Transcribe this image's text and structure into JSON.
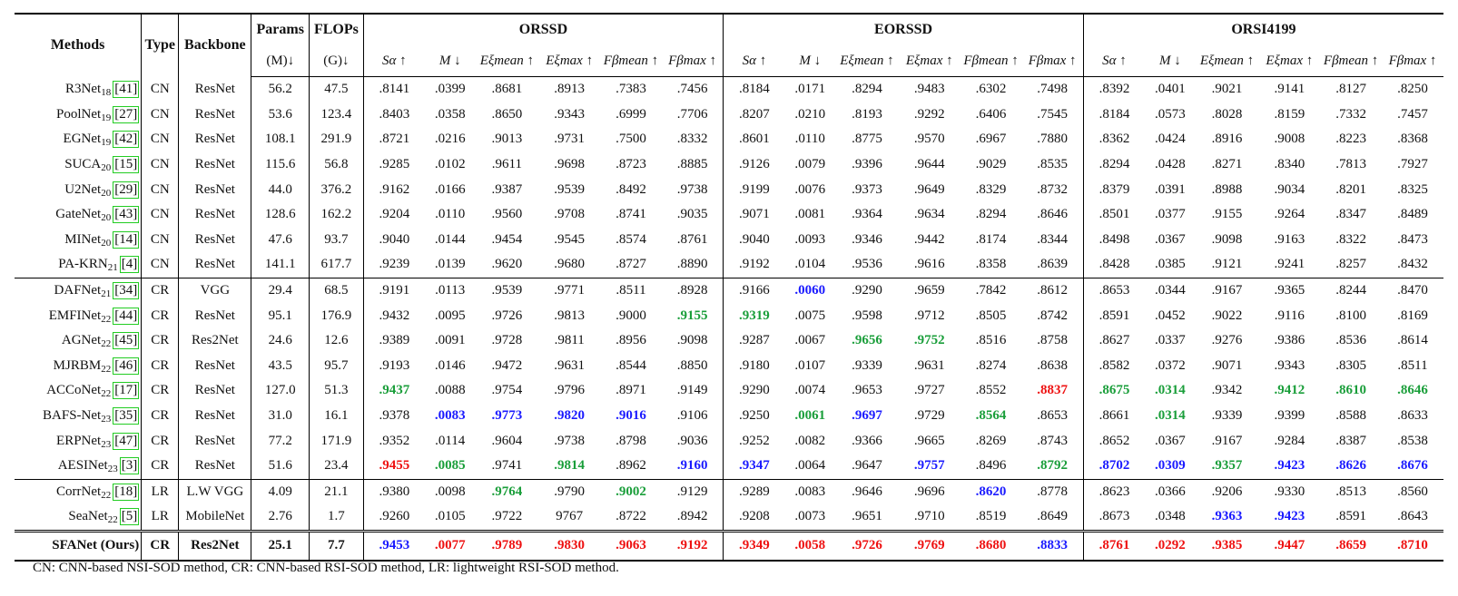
{
  "header": {
    "methods": "Methods",
    "type": "Type",
    "backbone": "Backbone",
    "params": "Params",
    "params_unit": "(M)↓",
    "flops": "FLOPs",
    "flops_unit": "(G)↓",
    "datasets": [
      "ORSSD",
      "EORSSD",
      "ORSI4199"
    ],
    "metrics": [
      "Sα ↑",
      "M ↓",
      "Eξmean ↑",
      "Eξmax ↑",
      "Fβmean ↑",
      "Fβmax ↑"
    ]
  },
  "colors": {
    "green": "#1a9e3a",
    "blue": "#1a1aff",
    "red": "#ee1111",
    "ref_box": "#22cc22"
  },
  "rows": [
    {
      "name": "R3Net",
      "year": "18",
      "ref": "41",
      "type": "CN",
      "backbone": "ResNet",
      "params": "56.2",
      "flops": "47.5",
      "vals": [
        ".8141",
        ".0399",
        ".8681",
        ".8913",
        ".7383",
        ".7456",
        ".8184",
        ".0171",
        ".8294",
        ".9483",
        ".6302",
        ".7498",
        ".8392",
        ".0401",
        ".9021",
        ".9141",
        ".8127",
        ".8250"
      ]
    },
    {
      "name": "PoolNet",
      "year": "19",
      "ref": "27",
      "type": "CN",
      "backbone": "ResNet",
      "params": "53.6",
      "flops": "123.4",
      "vals": [
        ".8403",
        ".0358",
        ".8650",
        ".9343",
        ".6999",
        ".7706",
        ".8207",
        ".0210",
        ".8193",
        ".9292",
        ".6406",
        ".7545",
        ".8184",
        ".0573",
        ".8028",
        ".8159",
        ".7332",
        ".7457"
      ]
    },
    {
      "name": "EGNet",
      "year": "19",
      "ref": "42",
      "type": "CN",
      "backbone": "ResNet",
      "params": "108.1",
      "flops": "291.9",
      "vals": [
        ".8721",
        ".0216",
        ".9013",
        ".9731",
        ".7500",
        ".8332",
        ".8601",
        ".0110",
        ".8775",
        ".9570",
        ".6967",
        ".7880",
        ".8362",
        ".0424",
        ".8916",
        ".9008",
        ".8223",
        ".8368"
      ]
    },
    {
      "name": "SUCA",
      "year": "20",
      "ref": "15",
      "type": "CN",
      "backbone": "ResNet",
      "params": "115.6",
      "flops": "56.8",
      "vals": [
        ".9285",
        ".0102",
        ".9611",
        ".9698",
        ".8723",
        ".8885",
        ".9126",
        ".0079",
        ".9396",
        ".9644",
        ".9029",
        ".8535",
        ".8294",
        ".0428",
        ".8271",
        ".8340",
        ".7813",
        ".7927"
      ]
    },
    {
      "name": "U2Net",
      "year": "20",
      "ref": "29",
      "type": "CN",
      "backbone": "ResNet",
      "params": "44.0",
      "flops": "376.2",
      "vals": [
        ".9162",
        ".0166",
        ".9387",
        ".9539",
        ".8492",
        ".9738",
        ".9199",
        ".0076",
        ".9373",
        ".9649",
        ".8329",
        ".8732",
        ".8379",
        ".0391",
        ".8988",
        ".9034",
        ".8201",
        ".8325"
      ]
    },
    {
      "name": "GateNet",
      "year": "20",
      "ref": "43",
      "type": "CN",
      "backbone": "ResNet",
      "params": "128.6",
      "flops": "162.2",
      "vals": [
        ".9204",
        ".0110",
        ".9560",
        ".9708",
        ".8741",
        ".9035",
        ".9071",
        ".0081",
        ".9364",
        ".9634",
        ".8294",
        ".8646",
        ".8501",
        ".0377",
        ".9155",
        ".9264",
        ".8347",
        ".8489"
      ]
    },
    {
      "name": "MINet",
      "year": "20",
      "ref": "14",
      "type": "CN",
      "backbone": "ResNet",
      "params": "47.6",
      "flops": "93.7",
      "vals": [
        ".9040",
        ".0144",
        ".9454",
        ".9545",
        ".8574",
        ".8761",
        ".9040",
        ".0093",
        ".9346",
        ".9442",
        ".8174",
        ".8344",
        ".8498",
        ".0367",
        ".9098",
        ".9163",
        ".8322",
        ".8473"
      ]
    },
    {
      "name": "PA-KRN",
      "year": "21",
      "ref": "4",
      "type": "CN",
      "backbone": "ResNet",
      "params": "141.1",
      "flops": "617.7",
      "vals": [
        ".9239",
        ".0139",
        ".9620",
        ".9680",
        ".8727",
        ".8890",
        ".9192",
        ".0104",
        ".9536",
        ".9616",
        ".8358",
        ".8639",
        ".8428",
        ".0385",
        ".9121",
        ".9241",
        ".8257",
        ".8432"
      ]
    },
    {
      "name": "DAFNet",
      "year": "21",
      "ref": "34",
      "type": "CR",
      "backbone": "VGG",
      "params": "29.4",
      "flops": "68.5",
      "vals": [
        ".9191",
        ".0113",
        ".9539",
        ".9771",
        ".8511",
        ".8928",
        ".9166",
        ".0060",
        ".9290",
        ".9659",
        ".7842",
        ".8612",
        ".8653",
        ".0344",
        ".9167",
        ".9365",
        ".8244",
        ".8470"
      ]
    },
    {
      "name": "EMFINet",
      "year": "22",
      "ref": "44",
      "type": "CR",
      "backbone": "ResNet",
      "params": "95.1",
      "flops": "176.9",
      "vals": [
        ".9432",
        ".0095",
        ".9726",
        ".9813",
        ".9000",
        ".9155",
        ".9319",
        ".0075",
        ".9598",
        ".9712",
        ".8505",
        ".8742",
        ".8591",
        ".0452",
        ".9022",
        ".9116",
        ".8100",
        ".8169"
      ]
    },
    {
      "name": "AGNet",
      "year": "22",
      "ref": "45",
      "type": "CR",
      "backbone": "Res2Net",
      "params": "24.6",
      "flops": "12.6",
      "vals": [
        ".9389",
        ".0091",
        ".9728",
        ".9811",
        ".8956",
        ".9098",
        ".9287",
        ".0067",
        ".9656",
        ".9752",
        ".8516",
        ".8758",
        ".8627",
        ".0337",
        ".9276",
        ".9386",
        ".8536",
        ".8614"
      ]
    },
    {
      "name": "MJRBM",
      "year": "22",
      "ref": "46",
      "type": "CR",
      "backbone": "ResNet",
      "params": "43.5",
      "flops": "95.7",
      "vals": [
        ".9193",
        ".0146",
        ".9472",
        ".9631",
        ".8544",
        ".8850",
        ".9180",
        ".0107",
        ".9339",
        ".9631",
        ".8274",
        ".8638",
        ".8582",
        ".0372",
        ".9071",
        ".9343",
        ".8305",
        ".8511"
      ]
    },
    {
      "name": "ACCoNet",
      "year": "22",
      "ref": "17",
      "type": "CR",
      "backbone": "ResNet",
      "params": "127.0",
      "flops": "51.3",
      "vals": [
        ".9437",
        ".0088",
        ".9754",
        ".9796",
        ".8971",
        ".9149",
        ".9290",
        ".0074",
        ".9653",
        ".9727",
        ".8552",
        ".8837",
        ".8675",
        ".0314",
        ".9342",
        ".9412",
        ".8610",
        ".8646"
      ]
    },
    {
      "name": "BAFS-Net",
      "year": "23",
      "ref": "35",
      "type": "CR",
      "backbone": "ResNet",
      "params": "31.0",
      "flops": "16.1",
      "vals": [
        ".9378",
        ".0083",
        ".9773",
        ".9820",
        ".9016",
        ".9106",
        ".9250",
        ".0061",
        ".9697",
        ".9729",
        ".8564",
        ".8653",
        ".8661",
        ".0314",
        ".9339",
        ".9399",
        ".8588",
        ".8633"
      ]
    },
    {
      "name": "ERPNet",
      "year": "23",
      "ref": "47",
      "type": "CR",
      "backbone": "ResNet",
      "params": "77.2",
      "flops": "171.9",
      "vals": [
        ".9352",
        ".0114",
        ".9604",
        ".9738",
        ".8798",
        ".9036",
        ".9252",
        ".0082",
        ".9366",
        ".9665",
        ".8269",
        ".8743",
        ".8652",
        ".0367",
        ".9167",
        ".9284",
        ".8387",
        ".8538"
      ]
    },
    {
      "name": "AESINet",
      "year": "23",
      "ref": "3",
      "type": "CR",
      "backbone": "ResNet",
      "params": "51.6",
      "flops": "23.4",
      "vals": [
        ".9455",
        ".0085",
        ".9741",
        ".9814",
        ".8962",
        ".9160",
        ".9347",
        ".0064",
        ".9647",
        ".9757",
        ".8496",
        ".8792",
        ".8702",
        ".0309",
        ".9357",
        ".9423",
        ".8626",
        ".8676"
      ]
    },
    {
      "name": "CorrNet",
      "year": "22",
      "ref": "18",
      "type": "LR",
      "backbone": "L.W VGG",
      "params": "4.09",
      "flops": "21.1",
      "vals": [
        ".9380",
        ".0098",
        ".9764",
        ".9790",
        ".9002",
        ".9129",
        ".9289",
        ".0083",
        ".9646",
        ".9696",
        ".8620",
        ".8778",
        ".8623",
        ".0366",
        ".9206",
        ".9330",
        ".8513",
        ".8560"
      ]
    },
    {
      "name": "SeaNet",
      "year": "22",
      "ref": "5",
      "type": "LR",
      "backbone": "MobileNet",
      "params": "2.76",
      "flops": "1.7",
      "vals": [
        ".9260",
        ".0105",
        ".9722",
        "9767",
        ".8722",
        ".8942",
        ".9208",
        ".0073",
        ".9651",
        ".9710",
        ".8519",
        ".8649",
        ".8673",
        ".0348",
        ".9363",
        ".9423",
        ".8591",
        ".8643"
      ]
    }
  ],
  "ours": {
    "name": "SFANet (Ours)",
    "type": "CR",
    "backbone": "Res2Net",
    "params": "25.1",
    "flops": "7.7",
    "vals": [
      ".9453",
      ".0077",
      ".9789",
      ".9830",
      ".9063",
      ".9192",
      ".9349",
      ".0058",
      ".9726",
      ".9769",
      ".8680",
      ".8833",
      ".8761",
      ".0292",
      ".9385",
      ".9447",
      ".8659",
      ".8710"
    ]
  },
  "highlights": {
    "8": {
      "7": "b"
    },
    "9": {
      "5": "g",
      "6": "g"
    },
    "10": {
      "8": "g",
      "9": "g"
    },
    "12": {
      "0": "g",
      "11": "r",
      "12": "g",
      "13": "g",
      "15": "g",
      "16": "g",
      "17": "g"
    },
    "13": {
      "1": "b",
      "2": "b",
      "3": "b",
      "4": "b",
      "7": "g",
      "8": "b",
      "10": "g",
      "13": "g"
    },
    "15": {
      "0": "r",
      "1": "g",
      "3": "g",
      "5": "b",
      "6": "b",
      "9": "b",
      "11": "g",
      "12": "b",
      "13": "b",
      "14": "g",
      "15": "b",
      "16": "b",
      "17": "b"
    },
    "16": {
      "2": "g",
      "4": "g",
      "10": "b"
    },
    "17": {
      "14": "b",
      "15": "b"
    },
    "ours": {
      "0": "b",
      "1": "r",
      "2": "r",
      "3": "r",
      "4": "r",
      "5": "r",
      "6": "r",
      "7": "r",
      "8": "r",
      "9": "r",
      "10": "r",
      "11": "b",
      "12": "r",
      "13": "r",
      "14": "r",
      "15": "r",
      "16": "r",
      "17": "r"
    }
  },
  "footnote": "CN: CNN-based NSI-SOD method, CR: CNN-based RSI-SOD method, LR: lightweight RSI-SOD method."
}
